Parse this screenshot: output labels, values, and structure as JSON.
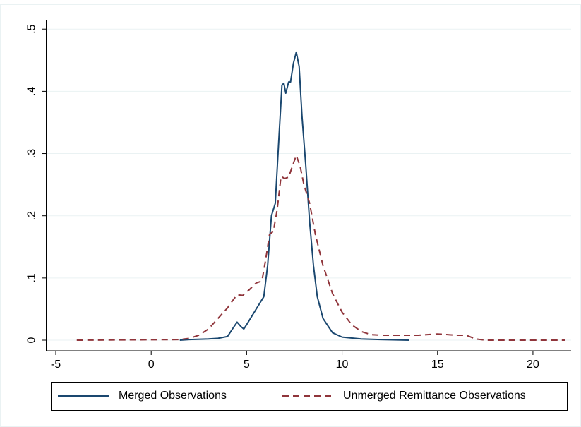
{
  "chart_data": {
    "type": "line",
    "xlim": [
      -5.5,
      22
    ],
    "ylim": [
      -0.017,
      0.515
    ],
    "xticks": [
      -5,
      0,
      5,
      10,
      15,
      20
    ],
    "yticks": [
      0,
      {
        "value": 0.1,
        "label": ".1"
      },
      {
        "value": 0.2,
        "label": ".2"
      },
      {
        "value": 0.3,
        "label": ".3"
      },
      {
        "value": 0.4,
        "label": ".4"
      },
      {
        "value": 0.5,
        "label": ".5"
      }
    ],
    "grid": true,
    "legend": "bottom",
    "series": [
      {
        "name": "Merged Observations",
        "color": "#1a476f",
        "line_style": "solid",
        "x": [
          1.5,
          2,
          3,
          3.5,
          4,
          4.3,
          4.5,
          4.7,
          4.85,
          5,
          5.3,
          5.6,
          5.9,
          6.1,
          6.3,
          6.5,
          6.7,
          6.85,
          6.95,
          7.05,
          7.2,
          7.3,
          7.45,
          7.6,
          7.75,
          7.9,
          8.1,
          8.3,
          8.5,
          8.7,
          9,
          9.5,
          10,
          11,
          12,
          13.5
        ],
        "values": [
          0,
          0.001,
          0.002,
          0.003,
          0.006,
          0.02,
          0.029,
          0.022,
          0.018,
          0.025,
          0.04,
          0.055,
          0.07,
          0.12,
          0.2,
          0.22,
          0.33,
          0.41,
          0.413,
          0.397,
          0.415,
          0.415,
          0.445,
          0.463,
          0.44,
          0.36,
          0.28,
          0.19,
          0.12,
          0.07,
          0.035,
          0.012,
          0.005,
          0.002,
          0.001,
          0
        ]
      },
      {
        "name": "Unmerged Remittance Observations",
        "color": "#90353b",
        "line_style": "dashed",
        "x": [
          -3.9,
          1.5,
          2,
          2.5,
          3,
          3.5,
          4,
          4.3,
          4.5,
          4.8,
          5.1,
          5.5,
          5.8,
          6,
          6.2,
          6.4,
          6.6,
          6.8,
          7,
          7.2,
          7.4,
          7.6,
          7.8,
          8,
          8.3,
          8.6,
          9,
          9.5,
          10,
          10.5,
          11,
          11.5,
          12,
          14,
          15,
          16,
          16.5,
          17,
          17.5,
          21.7
        ],
        "values": [
          0,
          0.001,
          0.003,
          0.008,
          0.018,
          0.035,
          0.052,
          0.065,
          0.073,
          0.072,
          0.08,
          0.092,
          0.095,
          0.13,
          0.17,
          0.175,
          0.21,
          0.263,
          0.26,
          0.262,
          0.28,
          0.297,
          0.28,
          0.25,
          0.22,
          0.17,
          0.12,
          0.075,
          0.045,
          0.025,
          0.014,
          0.009,
          0.008,
          0.008,
          0.01,
          0.008,
          0.008,
          0.002,
          0,
          0
        ]
      }
    ]
  }
}
